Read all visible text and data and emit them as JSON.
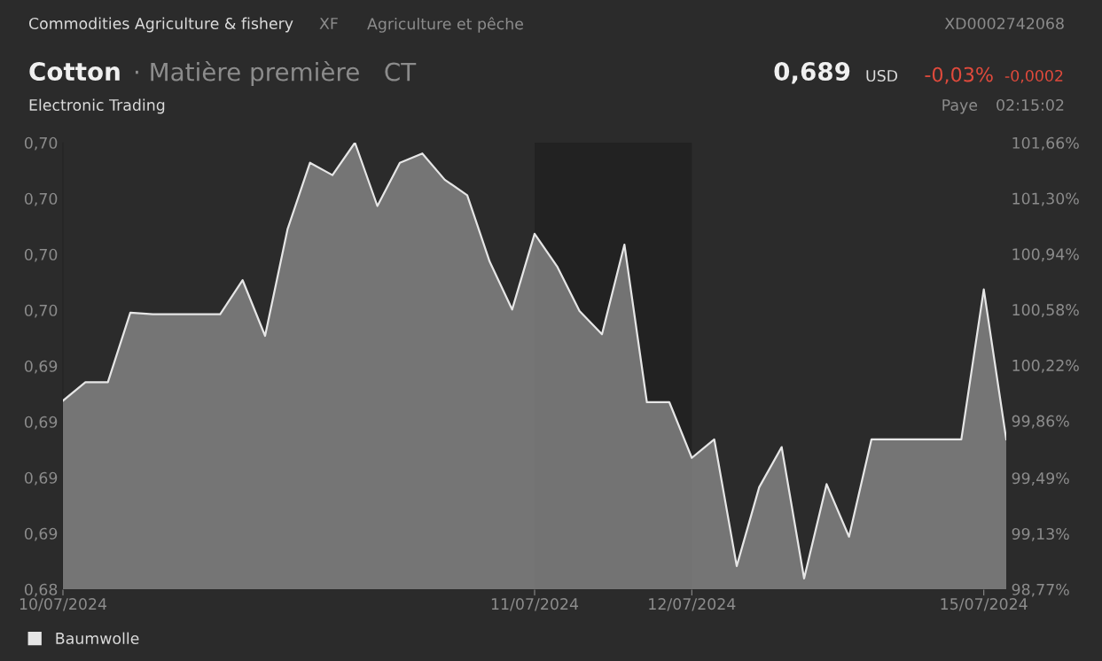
{
  "chart_data": {
    "type": "area",
    "title": "Cotton",
    "subtitle": "· Matière première   CT",
    "annotations": [
      "Commodities Agriculture & fishery",
      "XF",
      "Agriculture et pêche",
      "XD0002742068",
      "Electronic Trading",
      "0,689",
      "USD",
      "-0,03%",
      "-0,0002",
      "Paye",
      "02:15:02"
    ],
    "categories": [
      "10/07/2024",
      null,
      null,
      null,
      null,
      null,
      null,
      null,
      null,
      null,
      null,
      null,
      null,
      null,
      null,
      null,
      null,
      null,
      null,
      null,
      null,
      "11/07/2024",
      null,
      null,
      null,
      null,
      null,
      null,
      "12/07/2024",
      null,
      null,
      null,
      null,
      null,
      null,
      null,
      null,
      null,
      null,
      null,
      null,
      "15/07/2024",
      null
    ],
    "series": [
      {
        "name": "Baumwolle",
        "color": "#e6e6e6",
        "axis": "y2",
        "values": [
          99.99,
          100.11,
          100.11,
          100.56,
          100.55,
          100.55,
          100.55,
          100.55,
          100.77,
          100.41,
          101.1,
          101.53,
          101.45,
          101.66,
          101.25,
          101.53,
          101.59,
          101.42,
          101.32,
          100.89,
          100.58,
          101.07,
          100.86,
          100.57,
          100.42,
          101.0,
          99.98,
          99.98,
          99.62,
          99.74,
          98.92,
          99.43,
          99.69,
          98.84,
          99.45,
          99.11,
          99.74,
          99.74,
          99.74,
          99.74,
          99.74,
          100.71,
          99.74
        ]
      }
    ],
    "ylim": [
      0.6845,
      0.7037
    ],
    "yticks": [
      {
        "value": 0.6845,
        "label": "0,68"
      },
      {
        "value": 0.6869,
        "label": "0,69"
      },
      {
        "value": 0.6893,
        "label": "0,69"
      },
      {
        "value": 0.6917,
        "label": "0,69"
      },
      {
        "value": 0.6941,
        "label": "0,69"
      },
      {
        "value": 0.6965,
        "label": "0,70"
      },
      {
        "value": 0.6989,
        "label": "0,70"
      },
      {
        "value": 0.7013,
        "label": "0,70"
      },
      {
        "value": 0.7037,
        "label": "0,70"
      }
    ],
    "y2lim": [
      98.77,
      101.66
    ],
    "y2ticks": [
      {
        "value": 98.77,
        "label": "98,77%"
      },
      {
        "value": 99.13,
        "label": "99,13%"
      },
      {
        "value": 99.49,
        "label": "99,49%"
      },
      {
        "value": 99.86,
        "label": "99,86%"
      },
      {
        "value": 100.22,
        "label": "100,22%"
      },
      {
        "value": 100.58,
        "label": "100,58%"
      },
      {
        "value": 100.94,
        "label": "100,94%"
      },
      {
        "value": 101.3,
        "label": "101,30%"
      },
      {
        "value": 101.66,
        "label": "101,66%"
      }
    ],
    "bands": [
      {
        "axis": "x",
        "from": "11/07/2024",
        "to": "12/07/2024",
        "color": "#222222"
      }
    ],
    "legend": "bottom left"
  }
}
